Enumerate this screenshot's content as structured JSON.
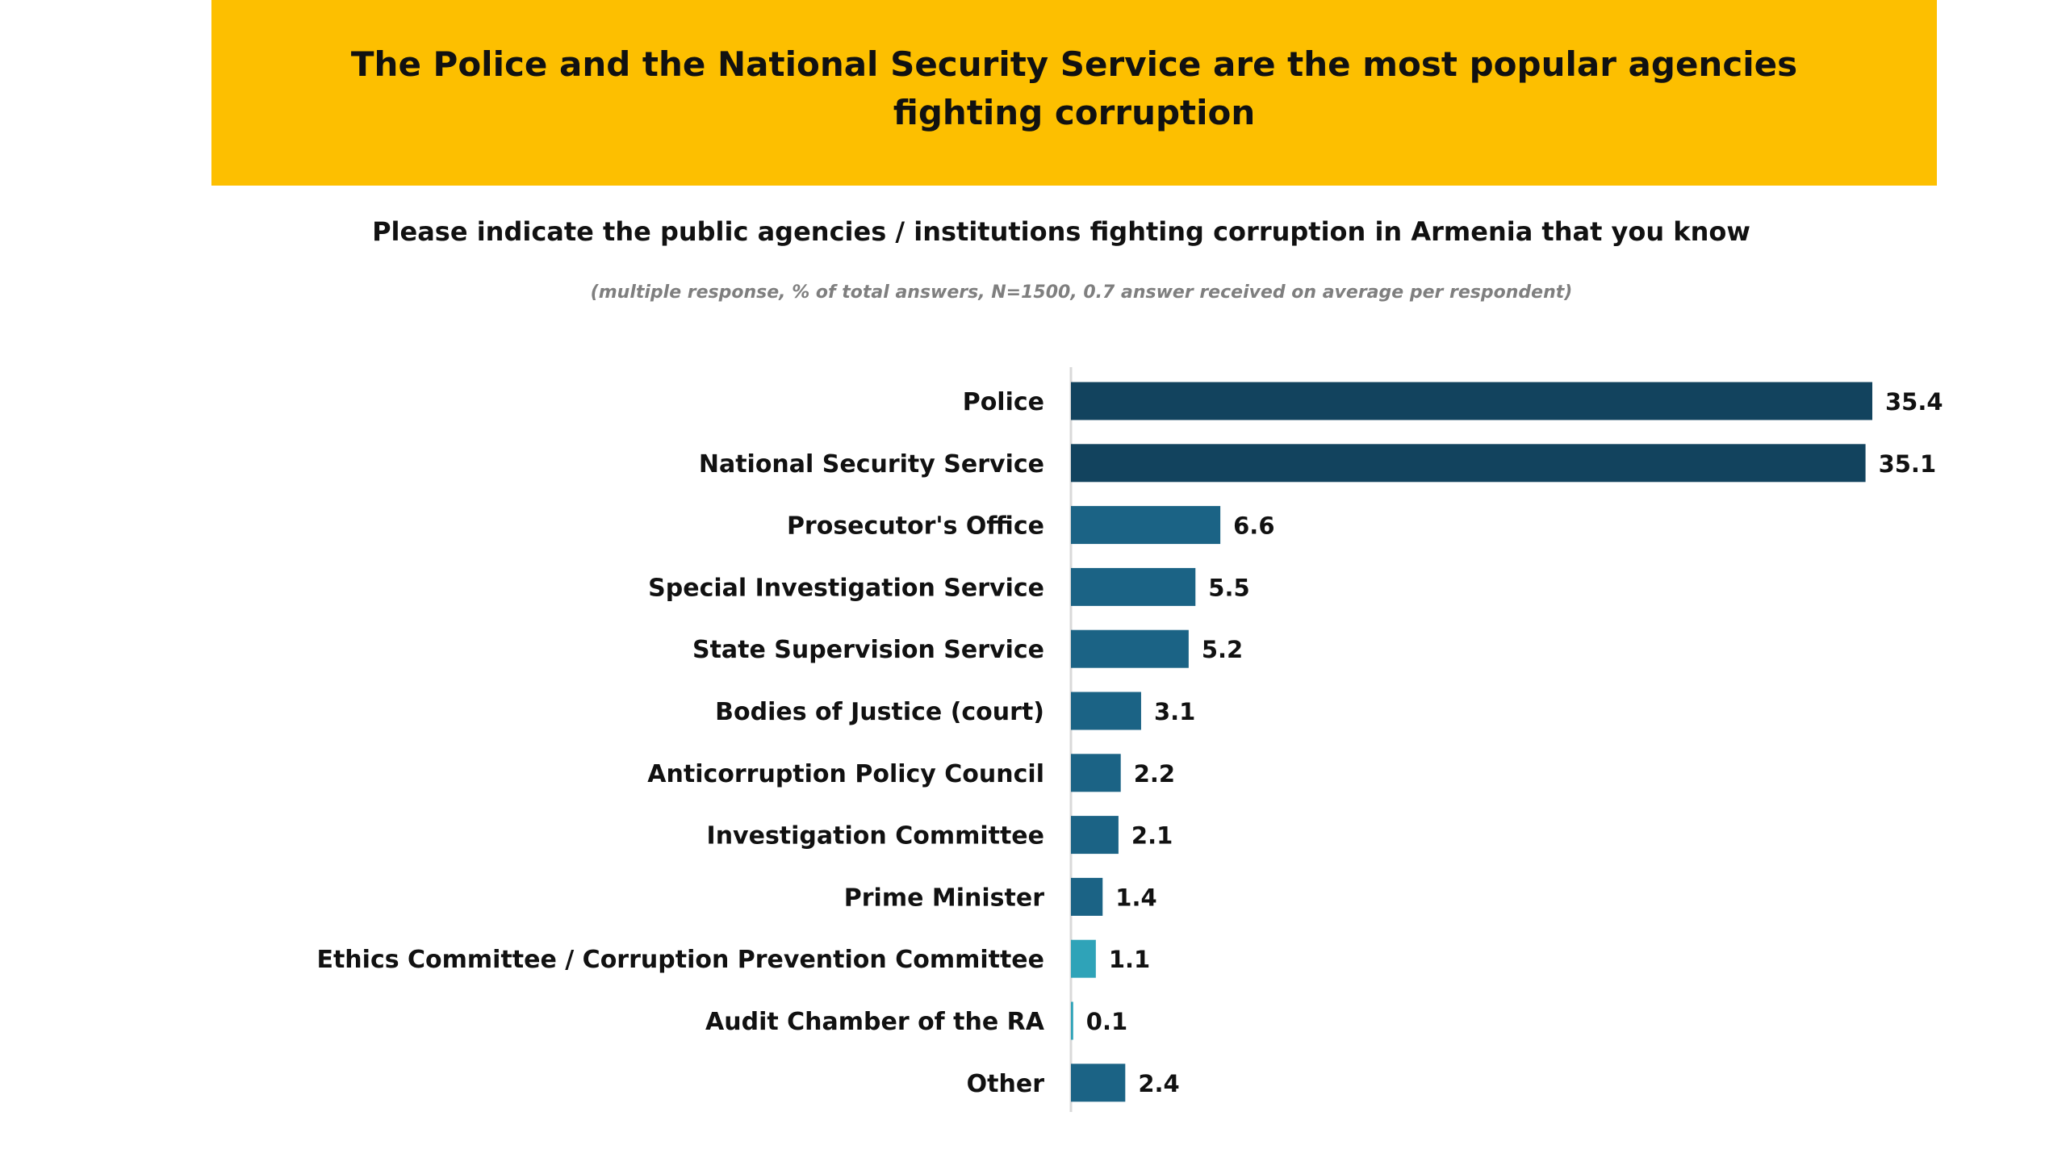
{
  "banner": {
    "line1": "The Police and the National Security Service are the most popular agencies",
    "line2": "fighting corruption"
  },
  "question": "Please indicate the public agencies / institutions fighting corruption in Armenia that you know",
  "note": "(multiple response, % of total answers, N=1500, 0.7 answer received  on average per respondent)",
  "colors": {
    "banner": "#fdbf00",
    "dark": "#12435e",
    "mid": "#1b6385",
    "light": "#2fa3b8",
    "axis": "#d9d9d9"
  },
  "chart_data": {
    "type": "bar",
    "orientation": "horizontal",
    "title": "Please indicate the public agencies / institutions fighting corruption in Armenia that you know",
    "subtitle": "(multiple response, % of total answers, N=1500, 0.7 answer received  on average per respondent)",
    "xlabel": "",
    "ylabel": "",
    "xlim": [
      0,
      35.4
    ],
    "grid": false,
    "categories": [
      "Police",
      "National Security Service",
      "Prosecutor's Office",
      "Special Investigation Service",
      "State Supervision Service",
      "Bodies of Justice (court)",
      "Anticorruption Policy Council",
      "Investigation Committee",
      "Prime Minister",
      "Ethics Committee / Corruption Prevention Committee",
      "Audit Chamber of the RA",
      "Other"
    ],
    "values": [
      35.4,
      35.1,
      6.6,
      5.5,
      5.2,
      3.1,
      2.2,
      2.1,
      1.4,
      1.1,
      0.1,
      2.4
    ],
    "value_labels": [
      "35.4",
      "35.1",
      "6.6",
      "5.5",
      "5.2",
      "3.1",
      "2.2",
      "2.1",
      "1.4",
      "1.1",
      "0.1",
      "2.4"
    ],
    "bar_colors": [
      "dark",
      "dark",
      "mid",
      "mid",
      "mid",
      "mid",
      "mid",
      "mid",
      "mid",
      "light",
      "light",
      "mid"
    ]
  }
}
